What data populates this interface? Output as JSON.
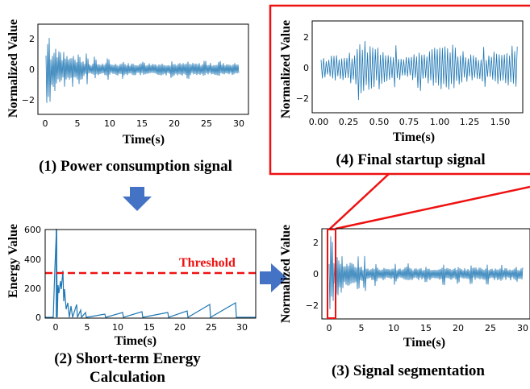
{
  "colors": {
    "signal": "#1f77b4",
    "arrow": "#4472c4",
    "highlight": "#ee1111",
    "axis": "#000000"
  },
  "panels": {
    "p1": {
      "ylabel": "Normalized Value",
      "xlabel": "Time(s)",
      "caption": "(1) Power consumption signal",
      "xticks": [
        "0",
        "5",
        "10",
        "15",
        "20",
        "25",
        "30"
      ],
      "yticks": [
        "2",
        "0",
        "−2"
      ]
    },
    "p2": {
      "ylabel": "Energy  Value",
      "xlabel": "Time(s)",
      "caption_line1": "(2) Short-term Energy",
      "caption_line2": "Calculation",
      "xticks": [
        "0",
        "5",
        "10",
        "15",
        "20",
        "25",
        "30"
      ],
      "yticks": [
        "600",
        "400",
        "200",
        "0"
      ],
      "threshold_label": "Threshold",
      "threshold_value": 300
    },
    "p3": {
      "ylabel": "Normalized Value",
      "xlabel": "Time(s)",
      "caption": "(3) Signal segmentation",
      "xticks": [
        "0",
        "5",
        "10",
        "15",
        "20",
        "25",
        "30"
      ],
      "yticks": [
        "2",
        "0",
        "−2"
      ]
    },
    "p4": {
      "ylabel": "Normalized Value",
      "xlabel": "Time(s)",
      "caption": "(4) Final startup signal",
      "xticks": [
        "0.00",
        "0.25",
        "0.50",
        "0.75",
        "1.00",
        "1.25",
        "1.50"
      ],
      "yticks": [
        "2",
        "0",
        "−2"
      ]
    }
  },
  "arrows": [
    "down-arrow-icon",
    "right-arrow-icon"
  ]
}
